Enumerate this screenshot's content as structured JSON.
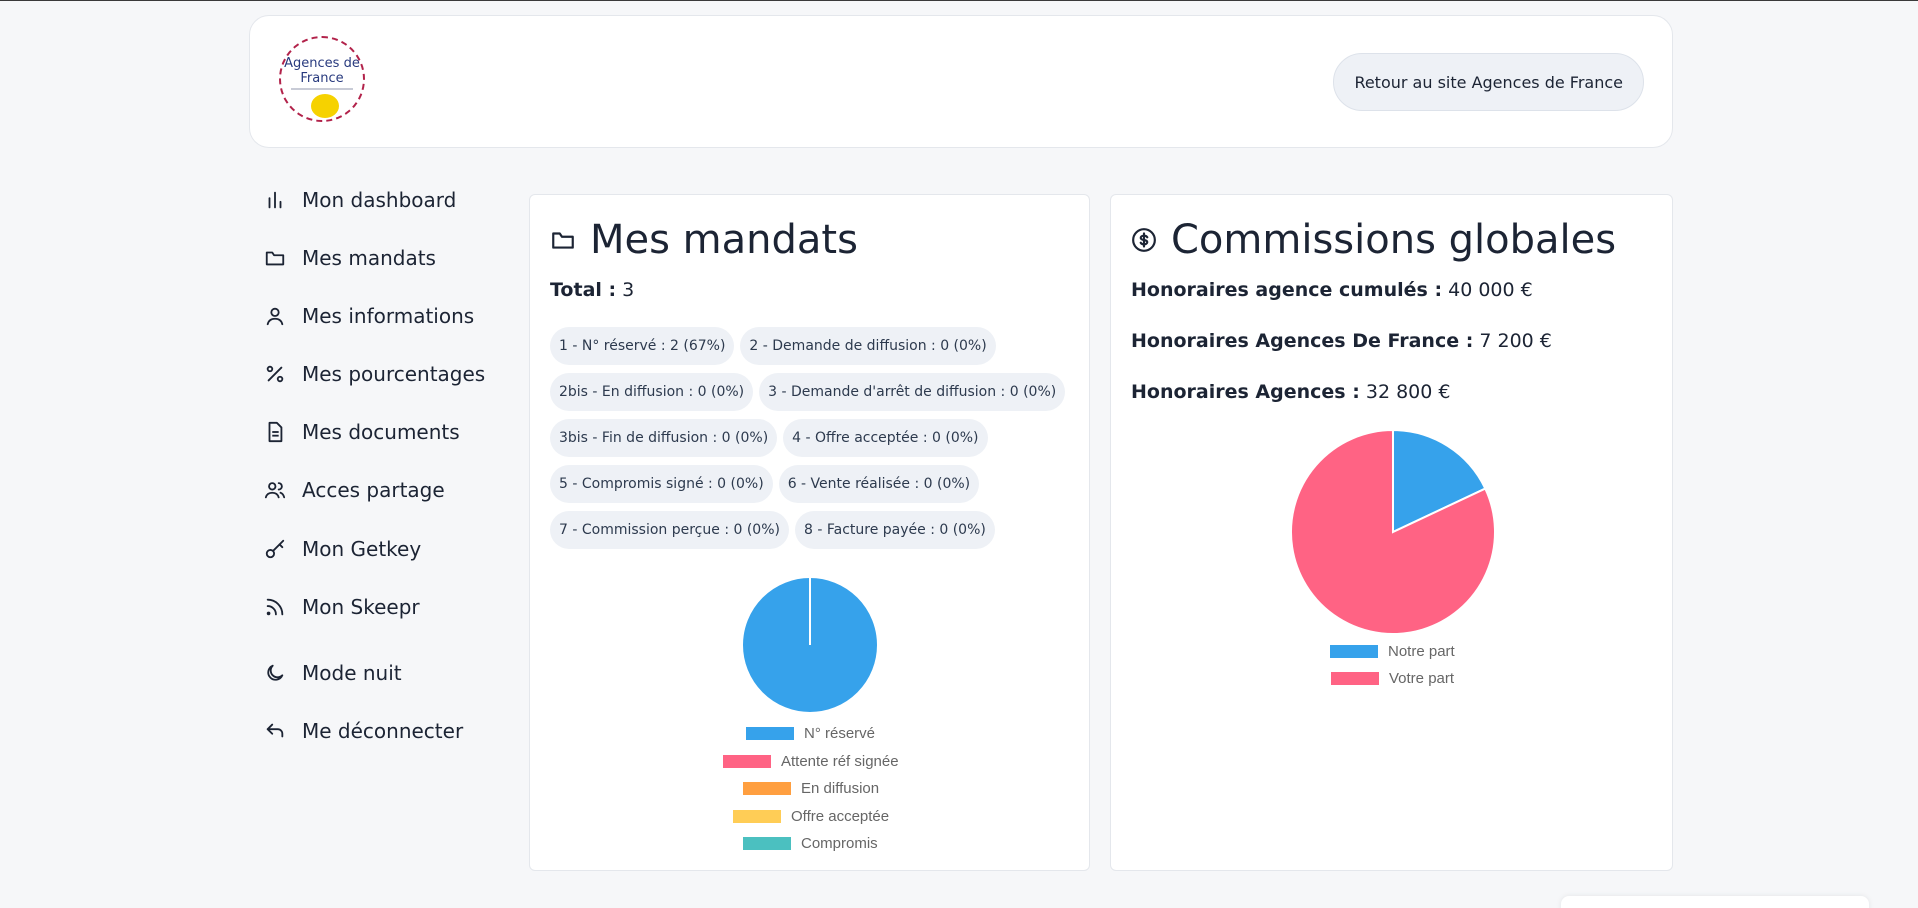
{
  "header": {
    "logo_text": "Agences de France",
    "back_button": "Retour au site Agences de France"
  },
  "sidebar": {
    "items": [
      {
        "label": "Mon dashboard",
        "icon": "bar-chart-icon"
      },
      {
        "label": "Mes mandats",
        "icon": "folder-icon"
      },
      {
        "label": "Mes informations",
        "icon": "user-icon"
      },
      {
        "label": "Mes pourcentages",
        "icon": "percent-icon"
      },
      {
        "label": "Mes documents",
        "icon": "document-icon"
      },
      {
        "label": "Acces partage",
        "icon": "users-icon"
      },
      {
        "label": "Mon Getkey",
        "icon": "key-icon"
      },
      {
        "label": "Mon Skeepr",
        "icon": "rss-icon"
      },
      {
        "label": "Mode nuit",
        "icon": "moon-icon"
      },
      {
        "label": "Me déconnecter",
        "icon": "logout-icon"
      }
    ]
  },
  "mandats": {
    "title": "Mes mandats",
    "total_label": "Total :",
    "total_value": "3",
    "statuses": [
      [
        "1 - N° réservé : 2 (67%)",
        "2 - Demande de diffusion : 0 (0%)"
      ],
      [
        "2bis - En diffusion : 0 (0%)",
        "3 - Demande d'arrêt de diffusion : 0 (0%)"
      ],
      [
        "3bis - Fin de diffusion : 0 (0%)",
        "4 - Offre acceptée : 0 (0%)"
      ],
      [
        "5 - Compromis signé : 0 (0%)",
        "6 - Vente réalisée : 0 (0%)"
      ],
      [
        "7 - Commission perçue : 0 (0%)",
        "8 - Facture payée : 0 (0%)"
      ]
    ]
  },
  "commissions": {
    "title": "Commissions globales",
    "lines": [
      {
        "label": "Honoraires agence cumulés :",
        "value": "40 000 €"
      },
      {
        "label": "Honoraires Agences De France :",
        "value": "7 200 €"
      },
      {
        "label": "Honoraires Agences :",
        "value": "32 800 €"
      }
    ]
  },
  "chart_data": [
    {
      "type": "pie",
      "labels": [
        "N° réservé",
        "Attente réf signée",
        "En diffusion",
        "Offre acceptée",
        "Compromis"
      ],
      "values": [
        2,
        0,
        0,
        0,
        0
      ],
      "colors": [
        "#36a2eb",
        "#ff6384",
        "#ff9f40",
        "#ffcd56",
        "#4bc0c0"
      ],
      "legend": "bottom"
    },
    {
      "type": "pie",
      "labels": [
        "Notre part",
        "Votre part"
      ],
      "values": [
        7200,
        32800
      ],
      "colors": [
        "#36a2eb",
        "#ff6384"
      ],
      "legend": "bottom"
    }
  ]
}
